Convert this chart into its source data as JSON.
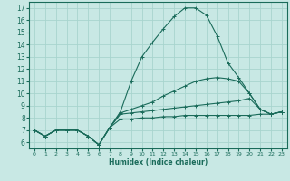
{
  "xlabel": "Humidex (Indice chaleur)",
  "xlim": [
    -0.5,
    23.5
  ],
  "ylim": [
    5.5,
    17.5
  ],
  "xticks": [
    0,
    1,
    2,
    3,
    4,
    5,
    6,
    7,
    8,
    9,
    10,
    11,
    12,
    13,
    14,
    15,
    16,
    17,
    18,
    19,
    20,
    21,
    22,
    23
  ],
  "yticks": [
    6,
    7,
    8,
    9,
    10,
    11,
    12,
    13,
    14,
    15,
    16,
    17
  ],
  "bg_color": "#c8e8e4",
  "line_color": "#1a6b5a",
  "grid_color": "#a8d4ce",
  "lines": [
    {
      "x": [
        0,
        1,
        2,
        3,
        4,
        5,
        6,
        7,
        8,
        9,
        10,
        11,
        12,
        13,
        14,
        15,
        16,
        17,
        18,
        19,
        20,
        21,
        22,
        23
      ],
      "y": [
        7.0,
        6.5,
        7.0,
        7.0,
        7.0,
        6.5,
        5.8,
        7.2,
        8.5,
        11.0,
        13.0,
        14.2,
        15.3,
        16.3,
        17.0,
        17.0,
        16.4,
        14.7,
        12.5,
        11.3,
        10.0,
        8.7,
        8.3,
        8.5
      ]
    },
    {
      "x": [
        0,
        1,
        2,
        3,
        4,
        5,
        6,
        7,
        8,
        9,
        10,
        11,
        12,
        13,
        14,
        15,
        16,
        17,
        18,
        19,
        20,
        21,
        22,
        23
      ],
      "y": [
        7.0,
        6.5,
        7.0,
        7.0,
        7.0,
        6.5,
        5.8,
        7.2,
        8.4,
        8.7,
        9.0,
        9.3,
        9.8,
        10.2,
        10.6,
        11.0,
        11.2,
        11.3,
        11.2,
        11.0,
        10.0,
        8.7,
        8.3,
        8.5
      ]
    },
    {
      "x": [
        0,
        1,
        2,
        3,
        4,
        5,
        6,
        7,
        8,
        9,
        10,
        11,
        12,
        13,
        14,
        15,
        16,
        17,
        18,
        19,
        20,
        21,
        22,
        23
      ],
      "y": [
        7.0,
        6.5,
        7.0,
        7.0,
        7.0,
        6.5,
        5.8,
        7.2,
        8.3,
        8.4,
        8.5,
        8.6,
        8.7,
        8.8,
        8.9,
        9.0,
        9.1,
        9.2,
        9.3,
        9.4,
        9.6,
        8.7,
        8.3,
        8.5
      ]
    },
    {
      "x": [
        0,
        1,
        2,
        3,
        4,
        5,
        6,
        7,
        8,
        9,
        10,
        11,
        12,
        13,
        14,
        15,
        16,
        17,
        18,
        19,
        20,
        21,
        22,
        23
      ],
      "y": [
        7.0,
        6.5,
        7.0,
        7.0,
        7.0,
        6.5,
        5.8,
        7.2,
        7.9,
        7.9,
        8.0,
        8.0,
        8.1,
        8.1,
        8.2,
        8.2,
        8.2,
        8.2,
        8.2,
        8.2,
        8.2,
        8.3,
        8.3,
        8.5
      ]
    }
  ]
}
